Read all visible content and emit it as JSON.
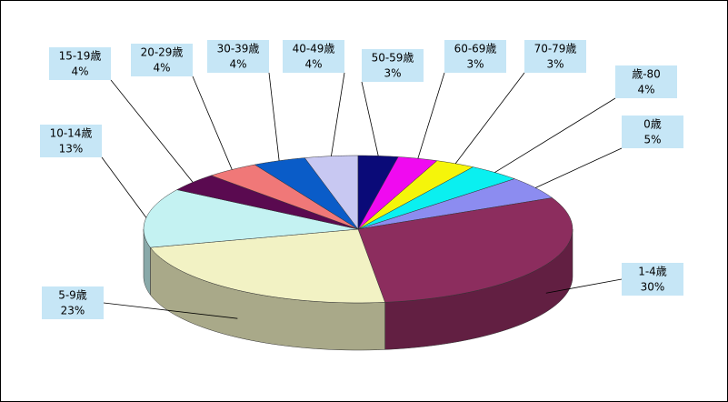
{
  "chart_data": {
    "type": "pie",
    "categories": [
      "0歳",
      "1-4歳",
      "5-9歳",
      "10-14歳",
      "15-19歳",
      "20-29歳",
      "30-39歳",
      "40-49歳",
      "50-59歳",
      "60-69歳",
      "70-79歳",
      "歳-80"
    ],
    "values": [
      5,
      30,
      23,
      13,
      4,
      4,
      4,
      4,
      3,
      3,
      3,
      4
    ],
    "value_labels": [
      "5%",
      "30%",
      "23%",
      "13%",
      "4%",
      "4%",
      "4%",
      "4%",
      "3%",
      "3%",
      "3%",
      "4%"
    ],
    "colors": [
      "#8c8cf0",
      "#8c2d5e",
      "#f2f2c4",
      "#c4f2f2",
      "#5a0a50",
      "#f07878",
      "#0a5cc8",
      "#c8c8f2",
      "#0a0a78",
      "#f00af0",
      "#f5f50a",
      "#0af0f0"
    ]
  }
}
